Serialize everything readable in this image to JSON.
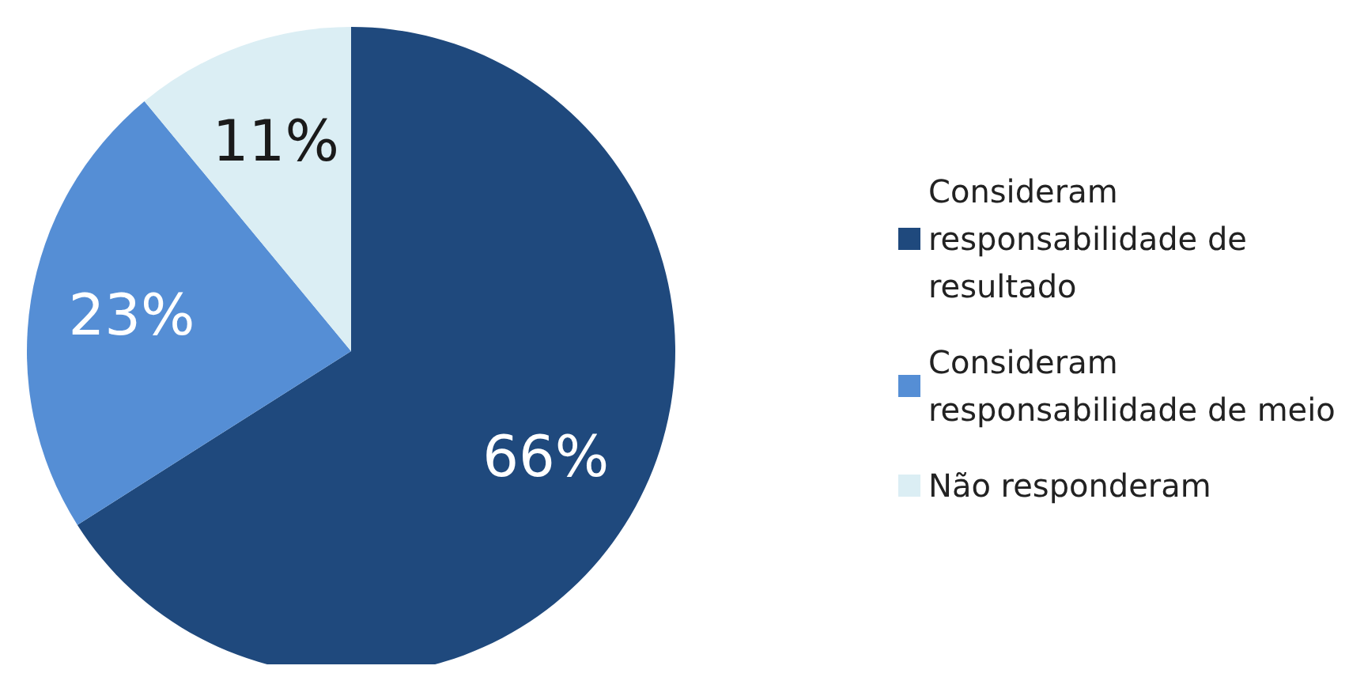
{
  "chart_data": {
    "type": "pie",
    "categories": [
      "Consideram responsabilidade de resultado",
      "Consideram responsabilidade de meio",
      "Não responderam"
    ],
    "values": [
      66,
      23,
      11
    ],
    "colors": [
      "#1f497d",
      "#558ed5",
      "#dbeef4"
    ],
    "value_labels": [
      "66%",
      "23%",
      "11%"
    ],
    "legend": "right"
  }
}
